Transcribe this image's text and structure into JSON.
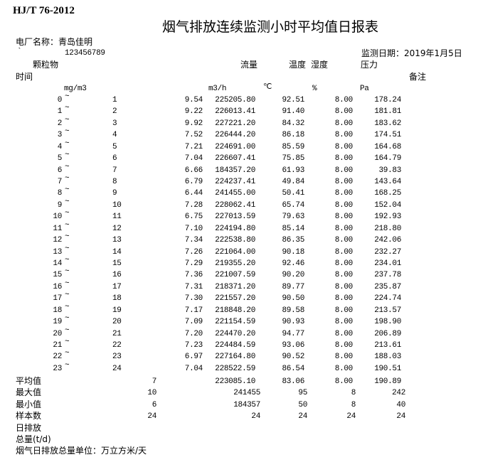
{
  "header": {
    "standard": "HJ/T 76-2012",
    "title": "烟气排放连续监测小时平均值日报表",
    "plant_label": "电厂名称：青岛佳明",
    "tick_mark": "`",
    "code": "123456789",
    "date_label": "监测日期：2019年1月5日"
  },
  "columns": {
    "time": "时间",
    "pm": "颗粒物",
    "flow": "流量",
    "temp": "温度",
    "humidity": "湿度",
    "pressure": "压力",
    "remark": "备注",
    "pm_unit": "mg/m3",
    "flow_unit": "m3/h",
    "temp_unit": "℃",
    "humidity_unit": "%",
    "pressure_unit": "Pa"
  },
  "tilde": "~",
  "rows": [
    {
      "start": "0",
      "end": "1",
      "pm": "9.54",
      "flow": "225205.80",
      "temp": "92.51",
      "humidity": "8.00",
      "pressure": "178.24"
    },
    {
      "start": "1",
      "end": "2",
      "pm": "9.22",
      "flow": "226013.41",
      "temp": "91.40",
      "humidity": "8.00",
      "pressure": "181.81"
    },
    {
      "start": "2",
      "end": "3",
      "pm": "9.92",
      "flow": "227221.20",
      "temp": "84.32",
      "humidity": "8.00",
      "pressure": "183.62"
    },
    {
      "start": "3",
      "end": "4",
      "pm": "7.52",
      "flow": "226444.20",
      "temp": "86.18",
      "humidity": "8.00",
      "pressure": "174.51"
    },
    {
      "start": "4",
      "end": "5",
      "pm": "7.21",
      "flow": "224691.00",
      "temp": "85.59",
      "humidity": "8.00",
      "pressure": "164.68"
    },
    {
      "start": "5",
      "end": "6",
      "pm": "7.04",
      "flow": "226607.41",
      "temp": "75.85",
      "humidity": "8.00",
      "pressure": "164.79"
    },
    {
      "start": "6",
      "end": "7",
      "pm": "6.66",
      "flow": "184357.20",
      "temp": "61.93",
      "humidity": "8.00",
      "pressure": "39.83"
    },
    {
      "start": "7",
      "end": "8",
      "pm": "6.79",
      "flow": "224237.41",
      "temp": "49.84",
      "humidity": "8.00",
      "pressure": "143.64"
    },
    {
      "start": "8",
      "end": "9",
      "pm": "6.44",
      "flow": "241455.00",
      "temp": "50.41",
      "humidity": "8.00",
      "pressure": "168.25"
    },
    {
      "start": "9",
      "end": "10",
      "pm": "7.28",
      "flow": "228062.41",
      "temp": "65.74",
      "humidity": "8.00",
      "pressure": "152.04"
    },
    {
      "start": "10",
      "end": "11",
      "pm": "6.75",
      "flow": "227013.59",
      "temp": "79.63",
      "humidity": "8.00",
      "pressure": "192.93"
    },
    {
      "start": "11",
      "end": "12",
      "pm": "7.10",
      "flow": "224194.80",
      "temp": "85.14",
      "humidity": "8.00",
      "pressure": "218.80"
    },
    {
      "start": "12",
      "end": "13",
      "pm": "7.34",
      "flow": "222538.80",
      "temp": "86.35",
      "humidity": "8.00",
      "pressure": "242.06"
    },
    {
      "start": "13",
      "end": "14",
      "pm": "7.26",
      "flow": "221064.00",
      "temp": "90.18",
      "humidity": "8.00",
      "pressure": "232.27"
    },
    {
      "start": "14",
      "end": "15",
      "pm": "7.29",
      "flow": "219355.20",
      "temp": "92.46",
      "humidity": "8.00",
      "pressure": "234.01"
    },
    {
      "start": "15",
      "end": "16",
      "pm": "7.36",
      "flow": "221007.59",
      "temp": "90.20",
      "humidity": "8.00",
      "pressure": "237.78"
    },
    {
      "start": "16",
      "end": "17",
      "pm": "7.31",
      "flow": "218371.20",
      "temp": "89.77",
      "humidity": "8.00",
      "pressure": "235.87"
    },
    {
      "start": "17",
      "end": "18",
      "pm": "7.30",
      "flow": "221557.20",
      "temp": "90.50",
      "humidity": "8.00",
      "pressure": "224.74"
    },
    {
      "start": "18",
      "end": "19",
      "pm": "7.17",
      "flow": "218848.20",
      "temp": "89.58",
      "humidity": "8.00",
      "pressure": "213.57"
    },
    {
      "start": "19",
      "end": "20",
      "pm": "7.09",
      "flow": "221154.59",
      "temp": "90.93",
      "humidity": "8.00",
      "pressure": "198.90"
    },
    {
      "start": "20",
      "end": "21",
      "pm": "7.20",
      "flow": "224470.20",
      "temp": "94.77",
      "humidity": "8.00",
      "pressure": "206.89"
    },
    {
      "start": "21",
      "end": "22",
      "pm": "7.23",
      "flow": "224484.59",
      "temp": "93.06",
      "humidity": "8.00",
      "pressure": "213.61"
    },
    {
      "start": "22",
      "end": "23",
      "pm": "6.97",
      "flow": "227164.80",
      "temp": "90.52",
      "humidity": "8.00",
      "pressure": "188.03"
    },
    {
      "start": "23",
      "end": "24",
      "pm": "7.04",
      "flow": "228522.59",
      "temp": "86.54",
      "humidity": "8.00",
      "pressure": "190.51"
    }
  ],
  "stats": [
    {
      "label": "平均值",
      "pm": "7",
      "flow": "223085.10",
      "temp": "83.06",
      "humidity": "8.00",
      "pressure": "190.89"
    },
    {
      "label": "最大值",
      "pm": "10",
      "flow": "241455",
      "temp": "95",
      "humidity": "8",
      "pressure": "242"
    },
    {
      "label": "最小值",
      "pm": "6",
      "flow": "184357",
      "temp": "50",
      "humidity": "8",
      "pressure": "40"
    },
    {
      "label": "样本数",
      "pm": "24",
      "flow": "24",
      "temp": "24",
      "humidity": "24",
      "pressure": "24"
    }
  ],
  "footer": {
    "daily_emission": "日排放",
    "total": "总量(t/d)",
    "unit_note": "烟气日排放总量单位：万立方米/天"
  }
}
